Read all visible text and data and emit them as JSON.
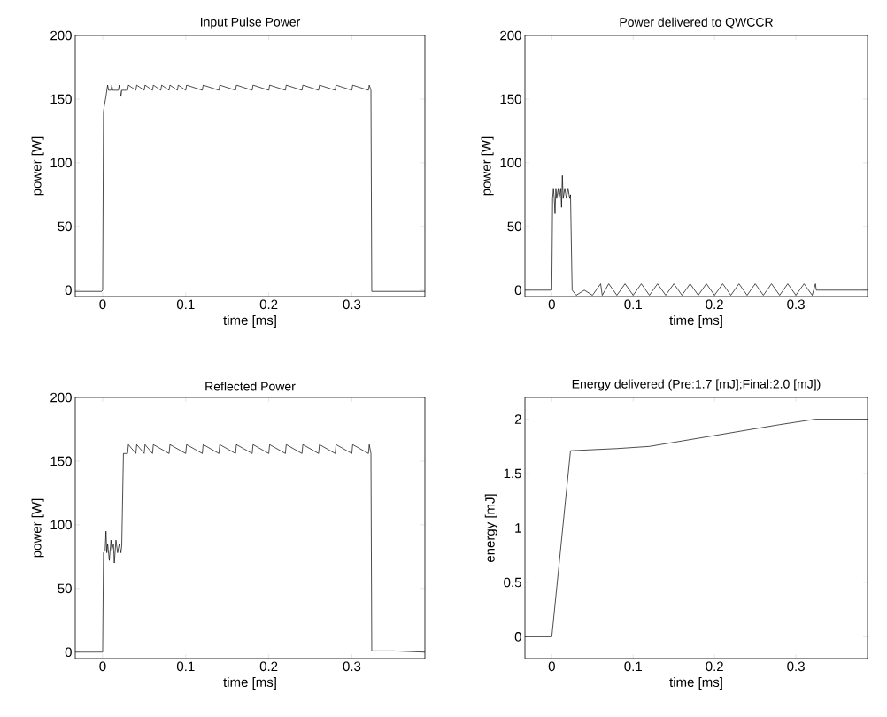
{
  "chart_data": [
    {
      "type": "line",
      "title": "Input Pulse Power",
      "xlabel": "time [ms]",
      "ylabel": "power [W]",
      "color": "#000000",
      "xlim": [
        -0.033,
        0.388
      ],
      "ylim": [
        -5,
        200
      ],
      "xticks": [
        0,
        0.1,
        0.2,
        0.3
      ],
      "yticks": [
        0,
        50,
        100,
        150,
        200
      ],
      "x": [
        -0.033,
        -0.001,
        0,
        0.001,
        0.002,
        0.004,
        0.005,
        0.006,
        0.007,
        0.01,
        0.011,
        0.012,
        0.019,
        0.02,
        0.021,
        0.022,
        0.023,
        0.024,
        0.03,
        0.031,
        0.04,
        0.041,
        0.05,
        0.051,
        0.06,
        0.061,
        0.07,
        0.071,
        0.08,
        0.081,
        0.09,
        0.091,
        0.1,
        0.101,
        0.12,
        0.121,
        0.14,
        0.141,
        0.16,
        0.161,
        0.18,
        0.181,
        0.2,
        0.201,
        0.22,
        0.221,
        0.24,
        0.241,
        0.26,
        0.261,
        0.28,
        0.281,
        0.3,
        0.301,
        0.32,
        0.321,
        0.323,
        0.324,
        0.35,
        0.388
      ],
      "values": [
        -1,
        -1,
        0,
        140,
        145,
        152,
        157,
        161,
        157,
        157,
        161,
        157,
        157,
        161,
        157,
        152,
        157,
        157,
        157,
        161,
        157,
        161,
        157,
        161,
        157,
        161,
        157,
        161,
        157,
        161,
        157,
        161,
        157,
        161,
        157,
        161,
        157,
        161,
        157,
        161,
        157,
        161,
        157,
        161,
        157,
        161,
        157,
        161,
        157,
        161,
        157,
        161,
        157,
        161,
        157,
        161,
        157,
        -1,
        -1,
        -1
      ]
    },
    {
      "type": "line",
      "title": "Power delivered to QWCCR",
      "xlabel": "time [ms]",
      "ylabel": "power [W]",
      "color": "#000000",
      "xlim": [
        -0.033,
        0.388
      ],
      "ylim": [
        -5,
        200
      ],
      "xticks": [
        0,
        0.1,
        0.2,
        0.3
      ],
      "yticks": [
        0,
        50,
        100,
        150,
        200
      ],
      "x": [
        -0.033,
        -0.001,
        0,
        0.001,
        0.002,
        0.003,
        0.004,
        0.005,
        0.006,
        0.008,
        0.009,
        0.011,
        0.012,
        0.013,
        0.014,
        0.016,
        0.018,
        0.02,
        0.022,
        0.023,
        0.025,
        0.03,
        0.04,
        0.05,
        0.06,
        0.062,
        0.07,
        0.08,
        0.09,
        0.1,
        0.11,
        0.12,
        0.13,
        0.14,
        0.15,
        0.16,
        0.17,
        0.18,
        0.19,
        0.2,
        0.21,
        0.22,
        0.23,
        0.24,
        0.25,
        0.26,
        0.27,
        0.28,
        0.29,
        0.3,
        0.31,
        0.32,
        0.324,
        0.325,
        0.35,
        0.388
      ],
      "values": [
        0,
        0,
        0,
        72,
        80,
        72,
        60,
        80,
        72,
        80,
        72,
        80,
        65,
        90,
        72,
        80,
        72,
        80,
        72,
        75,
        0,
        -4,
        0,
        -4,
        5,
        -4,
        5,
        -4,
        5,
        -4,
        5,
        -4,
        5,
        -4,
        5,
        -4,
        5,
        -4,
        5,
        -4,
        5,
        -4,
        5,
        -4,
        5,
        -4,
        5,
        -4,
        5,
        -4,
        5,
        -4,
        5,
        0,
        0,
        0
      ]
    },
    {
      "type": "line",
      "title": "Reflected Power",
      "xlabel": "time [ms]",
      "ylabel": "power [W]",
      "color": "#000000",
      "xlim": [
        -0.033,
        0.388
      ],
      "ylim": [
        -5,
        200
      ],
      "xticks": [
        0,
        0.1,
        0.2,
        0.3
      ],
      "yticks": [
        0,
        50,
        100,
        150,
        200
      ],
      "x": [
        -0.033,
        -0.001,
        0,
        0.001,
        0.003,
        0.004,
        0.005,
        0.006,
        0.008,
        0.01,
        0.011,
        0.013,
        0.014,
        0.016,
        0.018,
        0.02,
        0.022,
        0.023,
        0.025,
        0.03,
        0.031,
        0.04,
        0.041,
        0.05,
        0.051,
        0.06,
        0.061,
        0.08,
        0.081,
        0.1,
        0.101,
        0.12,
        0.121,
        0.14,
        0.141,
        0.16,
        0.161,
        0.18,
        0.181,
        0.2,
        0.201,
        0.22,
        0.221,
        0.24,
        0.241,
        0.26,
        0.261,
        0.28,
        0.281,
        0.3,
        0.301,
        0.32,
        0.321,
        0.323,
        0.324,
        0.35,
        0.388
      ],
      "values": [
        0,
        0,
        0,
        78,
        80,
        95,
        78,
        85,
        72,
        88,
        80,
        85,
        70,
        88,
        78,
        85,
        78,
        84,
        156,
        156,
        163,
        156,
        163,
        156,
        163,
        156,
        163,
        156,
        163,
        156,
        163,
        156,
        163,
        156,
        163,
        156,
        163,
        156,
        163,
        156,
        163,
        156,
        163,
        156,
        163,
        156,
        163,
        156,
        163,
        156,
        163,
        156,
        163,
        156,
        1,
        1,
        0
      ]
    },
    {
      "type": "line",
      "title": "Energy delivered (Pre:1.7 [mJ];Final:2.0 [mJ])",
      "xlabel": "time [ms]",
      "ylabel": "energy [mJ]",
      "color": "#000000",
      "xlim": [
        -0.033,
        0.388
      ],
      "ylim": [
        -0.2,
        2.2
      ],
      "xticks": [
        0,
        0.1,
        0.2,
        0.3
      ],
      "yticks": [
        0,
        0.5,
        1,
        1.5,
        2
      ],
      "x": [
        -0.033,
        0,
        0.023,
        0.08,
        0.12,
        0.16,
        0.2,
        0.24,
        0.28,
        0.324,
        0.388
      ],
      "values": [
        0,
        0,
        1.71,
        1.73,
        1.75,
        1.8,
        1.85,
        1.9,
        1.95,
        2.0,
        2.0
      ]
    }
  ]
}
